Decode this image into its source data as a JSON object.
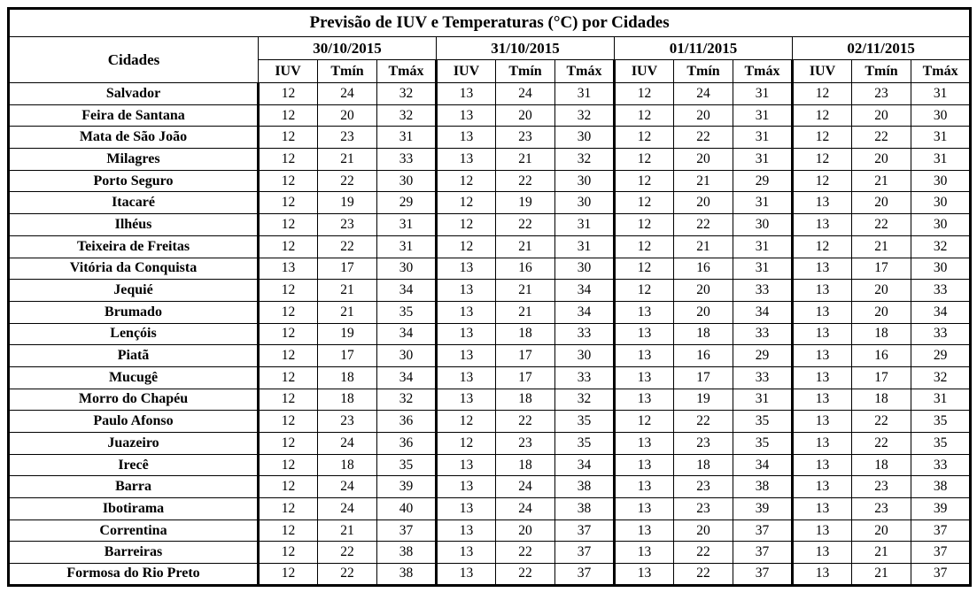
{
  "title": "Previsão de IUV e Temperaturas (°C) por Cidades",
  "cities_header": "Cidades",
  "dates": [
    "30/10/2015",
    "31/10/2015",
    "01/11/2015",
    "02/11/2015"
  ],
  "sub_columns": [
    "IUV",
    "Tmín",
    "Tmáx"
  ],
  "sub_column_keys": [
    "iuv",
    "tmin",
    "tmax"
  ],
  "rows": [
    {
      "city": "Salvador",
      "values": [
        [
          12,
          24,
          32
        ],
        [
          13,
          24,
          31
        ],
        [
          12,
          24,
          31
        ],
        [
          12,
          23,
          31
        ]
      ]
    },
    {
      "city": "Feira de Santana",
      "values": [
        [
          12,
          20,
          32
        ],
        [
          13,
          20,
          32
        ],
        [
          12,
          20,
          31
        ],
        [
          12,
          20,
          30
        ]
      ]
    },
    {
      "city": "Mata de São João",
      "values": [
        [
          12,
          23,
          31
        ],
        [
          13,
          23,
          30
        ],
        [
          12,
          22,
          31
        ],
        [
          12,
          22,
          31
        ]
      ]
    },
    {
      "city": "Milagres",
      "values": [
        [
          12,
          21,
          33
        ],
        [
          13,
          21,
          32
        ],
        [
          12,
          20,
          31
        ],
        [
          12,
          20,
          31
        ]
      ]
    },
    {
      "city": "Porto Seguro",
      "values": [
        [
          12,
          22,
          30
        ],
        [
          12,
          22,
          30
        ],
        [
          12,
          21,
          29
        ],
        [
          12,
          21,
          30
        ]
      ]
    },
    {
      "city": "Itacaré",
      "values": [
        [
          12,
          19,
          29
        ],
        [
          12,
          19,
          30
        ],
        [
          12,
          20,
          31
        ],
        [
          13,
          20,
          30
        ]
      ]
    },
    {
      "city": "Ilhéus",
      "values": [
        [
          12,
          23,
          31
        ],
        [
          12,
          22,
          31
        ],
        [
          12,
          22,
          30
        ],
        [
          13,
          22,
          30
        ]
      ]
    },
    {
      "city": "Teixeira de Freitas",
      "values": [
        [
          12,
          22,
          31
        ],
        [
          12,
          21,
          31
        ],
        [
          12,
          21,
          31
        ],
        [
          12,
          21,
          32
        ]
      ]
    },
    {
      "city": "Vitória da Conquista",
      "values": [
        [
          13,
          17,
          30
        ],
        [
          13,
          16,
          30
        ],
        [
          12,
          16,
          31
        ],
        [
          13,
          17,
          30
        ]
      ]
    },
    {
      "city": "Jequié",
      "values": [
        [
          12,
          21,
          34
        ],
        [
          13,
          21,
          34
        ],
        [
          12,
          20,
          33
        ],
        [
          13,
          20,
          33
        ]
      ]
    },
    {
      "city": "Brumado",
      "values": [
        [
          12,
          21,
          35
        ],
        [
          13,
          21,
          34
        ],
        [
          13,
          20,
          34
        ],
        [
          13,
          20,
          34
        ]
      ]
    },
    {
      "city": "Lençóis",
      "values": [
        [
          12,
          19,
          34
        ],
        [
          13,
          18,
          33
        ],
        [
          13,
          18,
          33
        ],
        [
          13,
          18,
          33
        ]
      ]
    },
    {
      "city": "Piatã",
      "values": [
        [
          12,
          17,
          30
        ],
        [
          13,
          17,
          30
        ],
        [
          13,
          16,
          29
        ],
        [
          13,
          16,
          29
        ]
      ]
    },
    {
      "city": "Mucugê",
      "values": [
        [
          12,
          18,
          34
        ],
        [
          13,
          17,
          33
        ],
        [
          13,
          17,
          33
        ],
        [
          13,
          17,
          32
        ]
      ]
    },
    {
      "city": "Morro do Chapéu",
      "values": [
        [
          12,
          18,
          32
        ],
        [
          13,
          18,
          32
        ],
        [
          13,
          19,
          31
        ],
        [
          13,
          18,
          31
        ]
      ]
    },
    {
      "city": "Paulo Afonso",
      "values": [
        [
          12,
          23,
          36
        ],
        [
          12,
          22,
          35
        ],
        [
          12,
          22,
          35
        ],
        [
          13,
          22,
          35
        ]
      ]
    },
    {
      "city": "Juazeiro",
      "values": [
        [
          12,
          24,
          36
        ],
        [
          12,
          23,
          35
        ],
        [
          13,
          23,
          35
        ],
        [
          13,
          22,
          35
        ]
      ]
    },
    {
      "city": "Irecê",
      "values": [
        [
          12,
          18,
          35
        ],
        [
          13,
          18,
          34
        ],
        [
          13,
          18,
          34
        ],
        [
          13,
          18,
          33
        ]
      ]
    },
    {
      "city": "Barra",
      "values": [
        [
          12,
          24,
          39
        ],
        [
          13,
          24,
          38
        ],
        [
          13,
          23,
          38
        ],
        [
          13,
          23,
          38
        ]
      ]
    },
    {
      "city": "Ibotirama",
      "values": [
        [
          12,
          24,
          40
        ],
        [
          13,
          24,
          38
        ],
        [
          13,
          23,
          39
        ],
        [
          13,
          23,
          39
        ]
      ]
    },
    {
      "city": "Correntina",
      "values": [
        [
          12,
          21,
          37
        ],
        [
          13,
          20,
          37
        ],
        [
          13,
          20,
          37
        ],
        [
          13,
          20,
          37
        ]
      ]
    },
    {
      "city": "Barreiras",
      "values": [
        [
          12,
          22,
          38
        ],
        [
          13,
          22,
          37
        ],
        [
          13,
          22,
          37
        ],
        [
          13,
          21,
          37
        ]
      ]
    },
    {
      "city": "Formosa do Rio Preto",
      "values": [
        [
          12,
          22,
          38
        ],
        [
          13,
          22,
          37
        ],
        [
          13,
          22,
          37
        ],
        [
          13,
          21,
          37
        ]
      ]
    }
  ],
  "colors": {
    "border": "#000000",
    "text": "#000000",
    "background": "#ffffff"
  }
}
